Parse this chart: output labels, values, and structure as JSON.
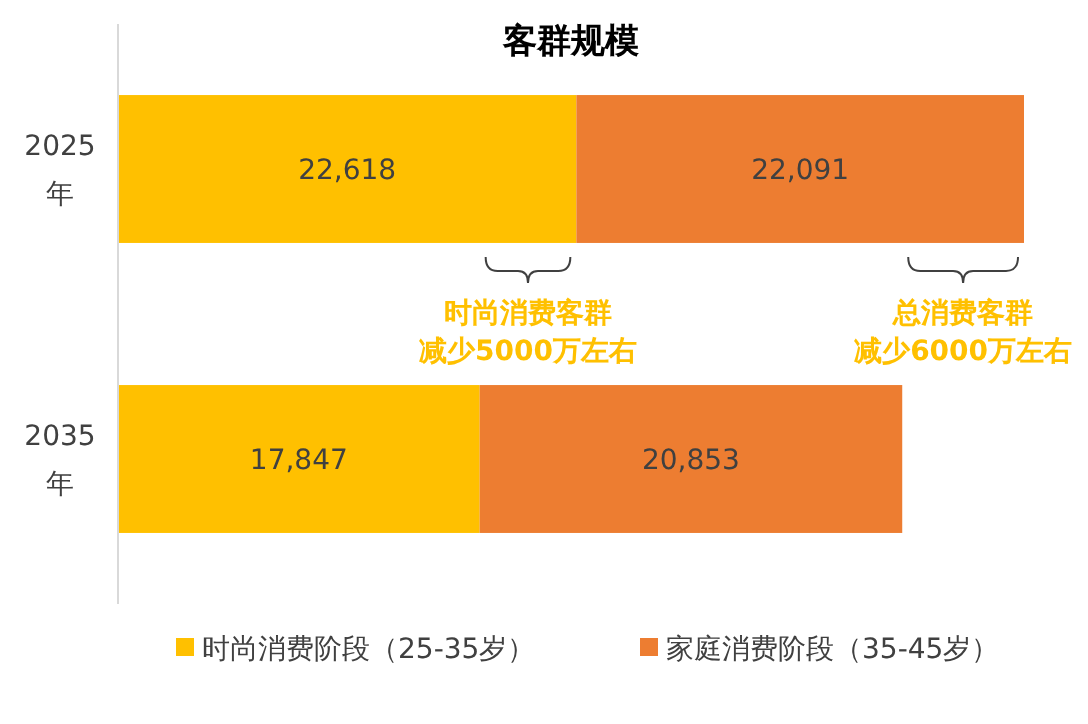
{
  "chart_data": {
    "type": "bar",
    "orientation": "horizontal",
    "stacked": true,
    "title": "客群规模",
    "categories": [
      "2025 年",
      "2035 年"
    ],
    "series": [
      {
        "name": "时尚消费阶段（25-35岁）",
        "color": "#ffc000",
        "values": [
          22618,
          17847
        ],
        "value_labels": [
          "22,618",
          "17,847"
        ]
      },
      {
        "name": "家庭消费阶段（35-45岁）",
        "color": "#ed7d31",
        "values": [
          22091,
          20853
        ],
        "value_labels": [
          "22,091",
          "20,853"
        ]
      }
    ],
    "legend": "bottom",
    "annotations": [
      "时尚消费客群减少5000万左右",
      "总消费客群减少6000万左右"
    ]
  }
}
